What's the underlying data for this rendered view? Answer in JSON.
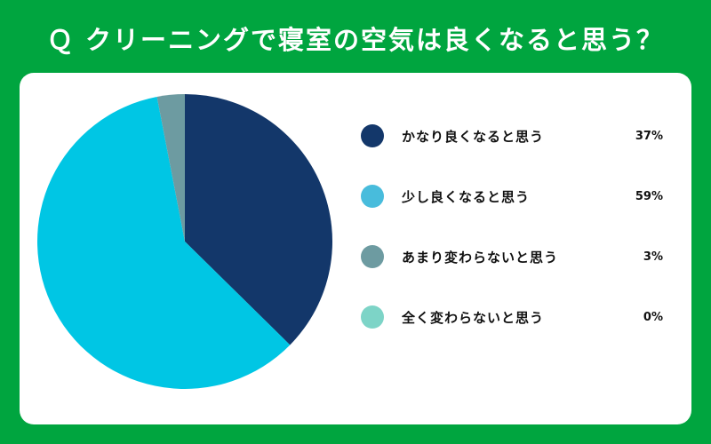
{
  "chart_data": {
    "type": "pie",
    "title": "Ｑ クリーニングで寝室の空気は良くなると思う？",
    "start": "top",
    "direction": "clockwise",
    "series": [
      {
        "name": "かなり良くなると思う",
        "value": 37,
        "label": "37%",
        "color": "#13376a",
        "legend_color": "#13376a"
      },
      {
        "name": "少し良くなると思う",
        "value": 59,
        "label": "59%",
        "color": "#00c6e4",
        "legend_color": "#48bcdc"
      },
      {
        "name": "あまり変わらないと思う",
        "value": 3,
        "label": "3%",
        "color": "#6d9ba1",
        "legend_color": "#6d9ba1"
      },
      {
        "name": "全く変わらないと思う",
        "value": 0,
        "label": "0%",
        "color": "#7dd4c7",
        "legend_color": "#7dd4c7"
      }
    ],
    "legend": "right"
  }
}
